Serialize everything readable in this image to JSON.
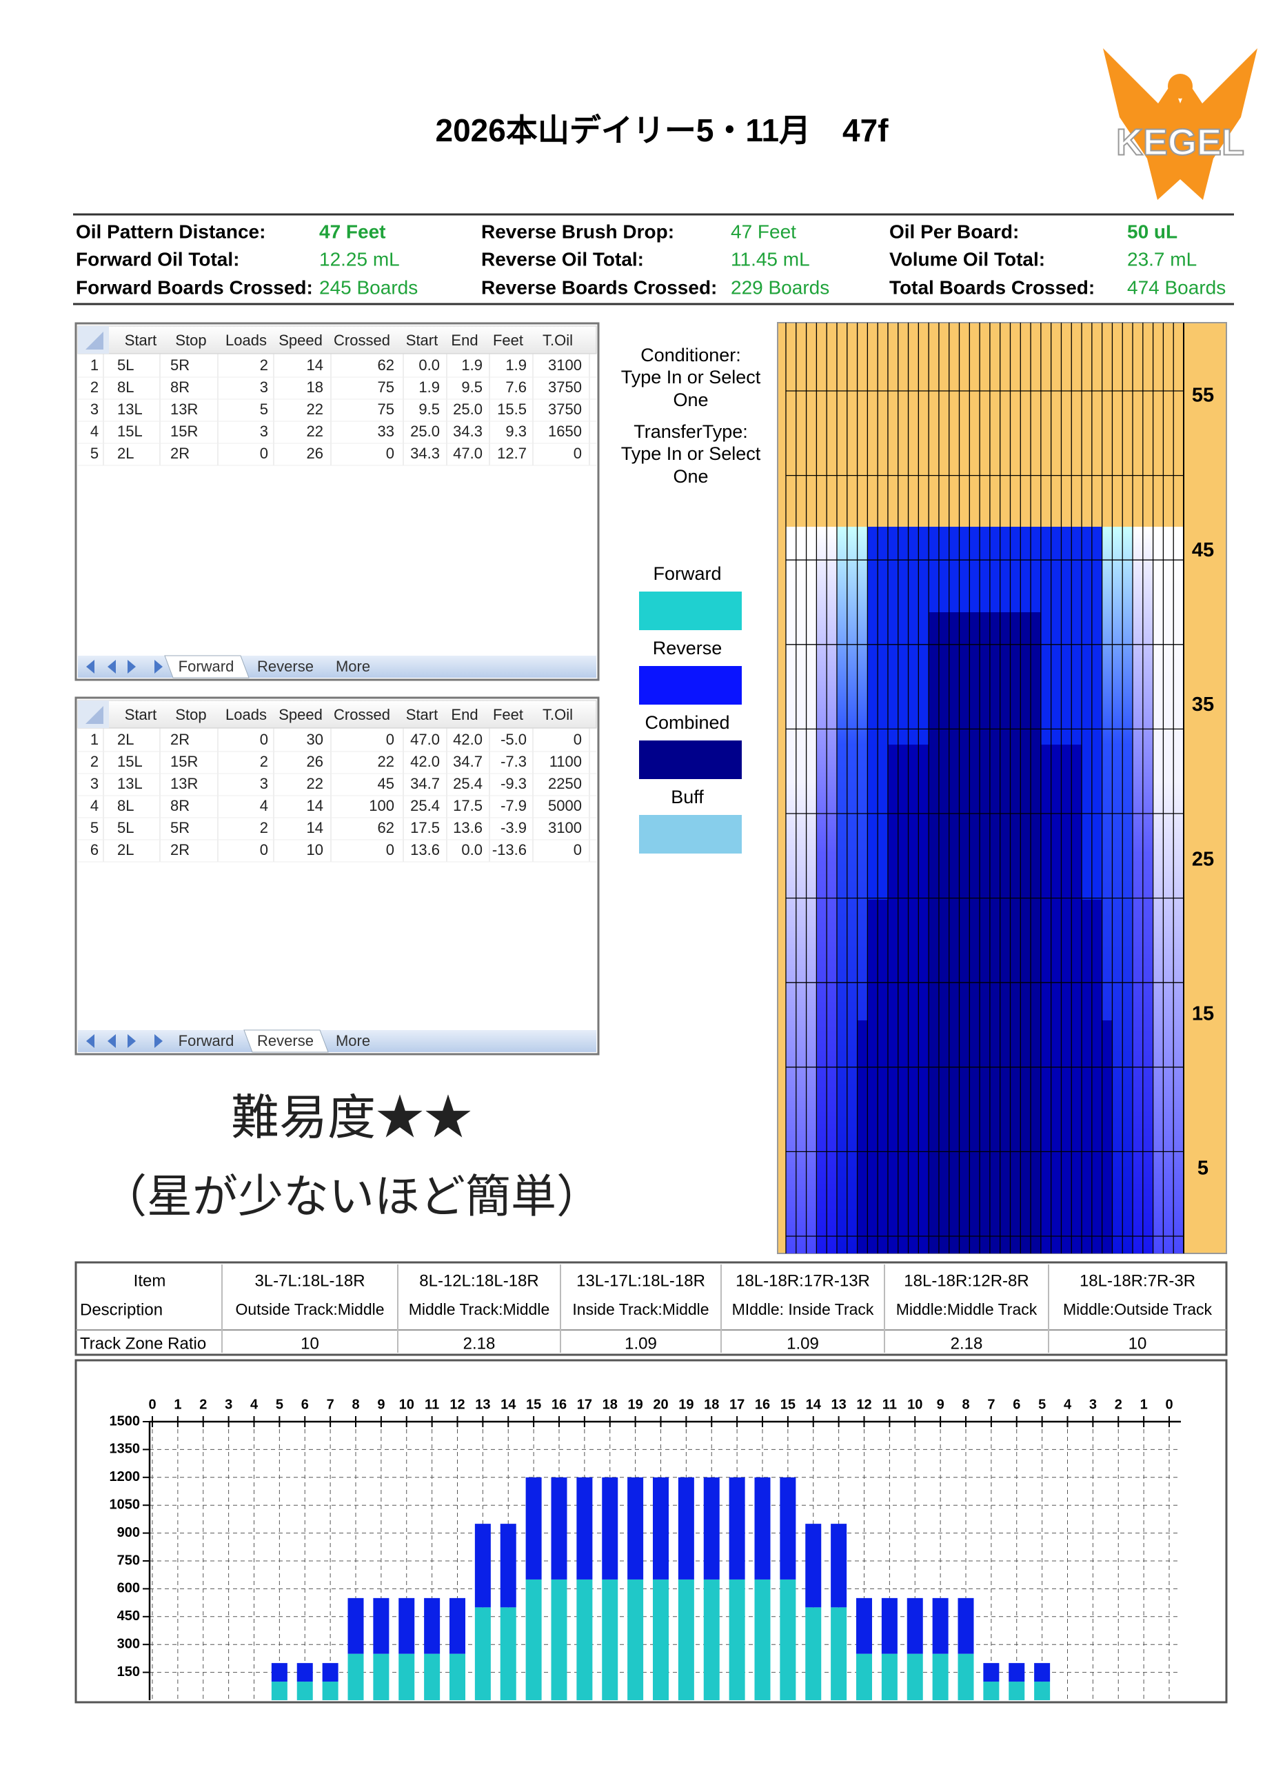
{
  "header": {
    "title": "2026本山デイリー5・11月　47f",
    "logo": "KEGEL"
  },
  "summary": {
    "rows": [
      [
        {
          "label": "Oil Pattern Distance:",
          "value": "47 Feet"
        },
        {
          "label": "Reverse Brush Drop:",
          "value": "47 Feet"
        },
        {
          "label": "Oil Per Board:",
          "value": "50 uL"
        }
      ],
      [
        {
          "label": "Forward Oil Total:",
          "value": "12.25 mL"
        },
        {
          "label": "Reverse Oil Total:",
          "value": "11.45 mL"
        },
        {
          "label": "Volume Oil Total:",
          "value": "23.7 mL"
        }
      ],
      [
        {
          "label": "Forward Boards Crossed:",
          "value": "245 Boards"
        },
        {
          "label": "Reverse Boards Crossed:",
          "value": "229 Boards"
        },
        {
          "label": "Total Boards Crossed:",
          "value": "474 Boards"
        }
      ]
    ]
  },
  "forward_table": {
    "headers": [
      "Start",
      "Stop",
      "Loads",
      "Speed",
      "Crossed",
      "Start",
      "End",
      "Feet",
      "T.Oil"
    ],
    "rows": [
      [
        "1",
        "5L",
        "5R",
        "2",
        "14",
        "62",
        "0.0",
        "1.9",
        "1.9",
        "3100"
      ],
      [
        "2",
        "8L",
        "8R",
        "3",
        "18",
        "75",
        "1.9",
        "9.5",
        "7.6",
        "3750"
      ],
      [
        "3",
        "13L",
        "13R",
        "5",
        "22",
        "75",
        "9.5",
        "25.0",
        "15.5",
        "3750"
      ],
      [
        "4",
        "15L",
        "15R",
        "3",
        "22",
        "33",
        "25.0",
        "34.3",
        "9.3",
        "1650"
      ],
      [
        "5",
        "2L",
        "2R",
        "0",
        "26",
        "0",
        "34.3",
        "47.0",
        "12.7",
        "0"
      ]
    ],
    "tabs": [
      "Forward",
      "Reverse",
      "More"
    ]
  },
  "reverse_table": {
    "headers": [
      "Start",
      "Stop",
      "Loads",
      "Speed",
      "Crossed",
      "Start",
      "End",
      "Feet",
      "T.Oil"
    ],
    "rows": [
      [
        "1",
        "2L",
        "2R",
        "0",
        "30",
        "0",
        "47.0",
        "42.0",
        "-5.0",
        "0"
      ],
      [
        "2",
        "15L",
        "15R",
        "2",
        "26",
        "22",
        "42.0",
        "34.7",
        "-7.3",
        "1100"
      ],
      [
        "3",
        "13L",
        "13R",
        "3",
        "22",
        "45",
        "34.7",
        "25.4",
        "-9.3",
        "2250"
      ],
      [
        "4",
        "8L",
        "8R",
        "4",
        "14",
        "100",
        "25.4",
        "17.5",
        "-7.9",
        "5000"
      ],
      [
        "5",
        "5L",
        "5R",
        "2",
        "14",
        "62",
        "17.5",
        "13.6",
        "-3.9",
        "3100"
      ],
      [
        "6",
        "2L",
        "2R",
        "0",
        "10",
        "0",
        "13.6",
        "0.0",
        "-13.6",
        "0"
      ]
    ],
    "tabs": [
      "Forward",
      "Reverse",
      "More"
    ]
  },
  "settings_panel": {
    "conditioner": [
      "Conditioner:",
      "Type In or Select",
      "One"
    ],
    "transfer": [
      "TransferType:",
      "Type In or Select",
      "One"
    ],
    "legend": [
      {
        "label": "Forward",
        "color": "#1fd0d0"
      },
      {
        "label": "Reverse",
        "color": "#0a14ff"
      },
      {
        "label": "Combined",
        "color": "#00008b"
      },
      {
        "label": "Buff",
        "color": "#87ceeb"
      }
    ]
  },
  "lane_map": {
    "distance_labels": [
      55,
      45,
      35,
      25,
      15,
      5
    ]
  },
  "notes": {
    "difficulty": "難易度★★",
    "hint": "（星が少ないほど簡単）"
  },
  "track_zone": {
    "item_label": "Item",
    "description_label": "Description",
    "ratio_label": "Track Zone Ratio",
    "columns": [
      {
        "range": "3L-7L:18L-18R",
        "description": "Outside Track:Middle",
        "ratio": "10"
      },
      {
        "range": "8L-12L:18L-18R",
        "description": "Middle Track:Middle",
        "ratio": "2.18"
      },
      {
        "range": "13L-17L:18L-18R",
        "description": "Inside Track:Middle",
        "ratio": "1.09"
      },
      {
        "range": "18L-18R:17R-13R",
        "description": "MIddle: Inside Track",
        "ratio": "1.09"
      },
      {
        "range": "18L-18R:12R-8R",
        "description": "Middle:Middle Track",
        "ratio": "2.18"
      },
      {
        "range": "18L-18R:7R-3R",
        "description": "Middle:Outside Track",
        "ratio": "10"
      }
    ]
  },
  "chart_data": {
    "type": "bar",
    "stacked": true,
    "categories": [
      "0",
      "1",
      "2",
      "3",
      "4",
      "5",
      "6",
      "7",
      "8",
      "9",
      "10",
      "11",
      "12",
      "13",
      "14",
      "15",
      "16",
      "17",
      "18",
      "19",
      "20",
      "19",
      "18",
      "17",
      "16",
      "15",
      "14",
      "13",
      "12",
      "11",
      "10",
      "9",
      "8",
      "7",
      "6",
      "5",
      "4",
      "3",
      "2",
      "1",
      "0"
    ],
    "series": [
      {
        "color": "#20c8c8",
        "values": [
          0,
          0,
          0,
          0,
          0,
          100,
          100,
          100,
          250,
          250,
          250,
          250,
          250,
          500,
          500,
          650,
          650,
          650,
          650,
          650,
          650,
          650,
          650,
          650,
          650,
          650,
          500,
          500,
          250,
          250,
          250,
          250,
          250,
          100,
          100,
          100,
          0,
          0,
          0,
          0,
          0
        ]
      },
      {
        "color": "#0a20e8",
        "values": [
          0,
          0,
          0,
          0,
          0,
          100,
          100,
          100,
          300,
          300,
          300,
          300,
          300,
          450,
          450,
          550,
          550,
          550,
          550,
          550,
          550,
          550,
          550,
          550,
          550,
          550,
          450,
          450,
          300,
          300,
          300,
          300,
          300,
          100,
          100,
          100,
          0,
          0,
          0,
          0,
          0
        ]
      }
    ],
    "ylim": [
      0,
      1500
    ],
    "yticks": [
      150,
      300,
      450,
      600,
      750,
      900,
      1050,
      1200,
      1350,
      1500
    ],
    "grid": true
  }
}
